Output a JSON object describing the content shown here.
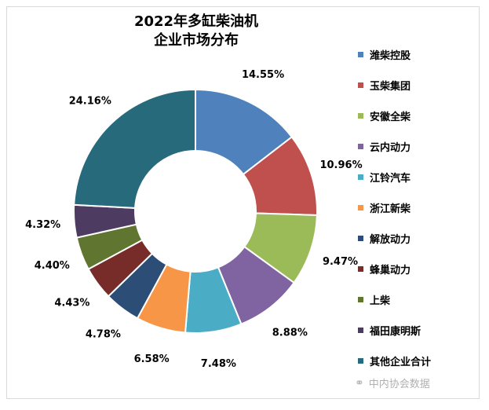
{
  "chart_data": {
    "type": "pie",
    "variant": "doughnut",
    "title_lines": [
      "2022年多缸柴油机",
      "企业市场分布"
    ],
    "legend_position": "right",
    "categories": [
      "潍柴控股",
      "玉柴集团",
      "安徽全柴",
      "云内动力",
      "江铃汽车",
      "浙江新柴",
      "解放动力",
      "蜂巢动力",
      "上柴",
      "福田康明斯",
      "其他企业合计"
    ],
    "values": [
      14.55,
      10.96,
      9.47,
      8.88,
      7.48,
      6.58,
      4.78,
      4.43,
      4.4,
      4.32,
      24.16
    ],
    "labels": [
      "14.55%",
      "10.96%",
      "9.47%",
      "8.88%",
      "7.48%",
      "6.58%",
      "4.78%",
      "4.43%",
      "4.40%",
      "4.32%",
      "24.16%"
    ],
    "colors": [
      "#4f81bd",
      "#c0504d",
      "#9bbb59",
      "#8064a2",
      "#4bacc6",
      "#f79646",
      "#2c4d75",
      "#772c2a",
      "#5f7530",
      "#4d3b62",
      "#276a7c"
    ]
  },
  "watermark": {
    "text": "中内协会数据",
    "icon": "wechat-icon"
  }
}
